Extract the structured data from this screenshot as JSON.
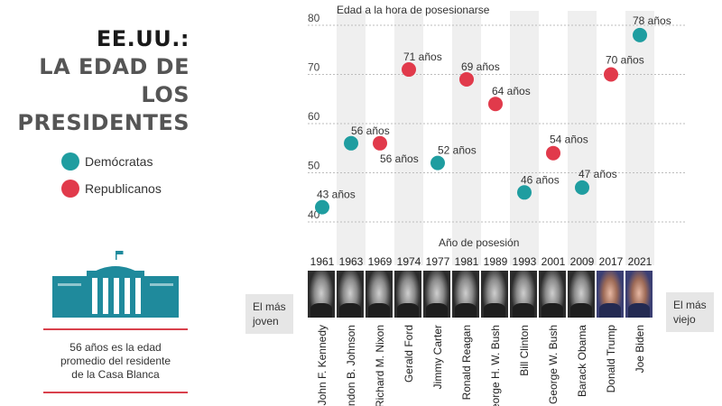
{
  "title": {
    "line1": "EE.UU.:",
    "line2": "LA EDAD DE LOS",
    "line3": "PRESIDENTES"
  },
  "legend": [
    {
      "label": "Demócratas",
      "color": "#1f9da0"
    },
    {
      "label": "Republicanos",
      "color": "#e13a4b"
    }
  ],
  "note": "56 años es la edad promedio del residente de la Casa Blanca",
  "youngest_tag": {
    "line1": "El más",
    "line2": "joven"
  },
  "oldest_tag": {
    "line1": "El más",
    "line2": "viejo"
  },
  "chart_data": {
    "type": "scatter",
    "ylabel": "Edad a la hora de posesionarse",
    "xlabel": "Año de posesión",
    "ylim": [
      40,
      80
    ],
    "yticks": [
      40,
      50,
      60,
      70,
      80
    ],
    "grid": true,
    "point_label_suffix": " años",
    "colors": {
      "D": "#1f9da0",
      "R": "#e13a4b"
    },
    "points": [
      {
        "year": "1961",
        "president": "John F. Kennedy",
        "age": 43,
        "party": "D"
      },
      {
        "year": "1963",
        "president": "Lyndon B. Johnson",
        "age": 56,
        "party": "D"
      },
      {
        "year": "1969",
        "president": "Richard M. Nixon",
        "age": 56,
        "party": "R"
      },
      {
        "year": "1974",
        "president": "Gerald Ford",
        "age": 71,
        "party": "R"
      },
      {
        "year": "1977",
        "president": "Jimmy Carter",
        "age": 52,
        "party": "D"
      },
      {
        "year": "1981",
        "president": "Ronald Reagan",
        "age": 69,
        "party": "R"
      },
      {
        "year": "1989",
        "president": "George H. W. Bush",
        "age": 64,
        "party": "R"
      },
      {
        "year": "1993",
        "president": "Bill Clinton",
        "age": 46,
        "party": "D"
      },
      {
        "year": "2001",
        "president": "George W. Bush",
        "age": 54,
        "party": "R"
      },
      {
        "year": "2009",
        "president": "Barack Obama",
        "age": 47,
        "party": "D"
      },
      {
        "year": "2017",
        "president": "Donald Trump",
        "age": 70,
        "party": "R"
      },
      {
        "year": "2021",
        "president": "Joe Biden",
        "age": 78,
        "party": "D"
      }
    ]
  }
}
